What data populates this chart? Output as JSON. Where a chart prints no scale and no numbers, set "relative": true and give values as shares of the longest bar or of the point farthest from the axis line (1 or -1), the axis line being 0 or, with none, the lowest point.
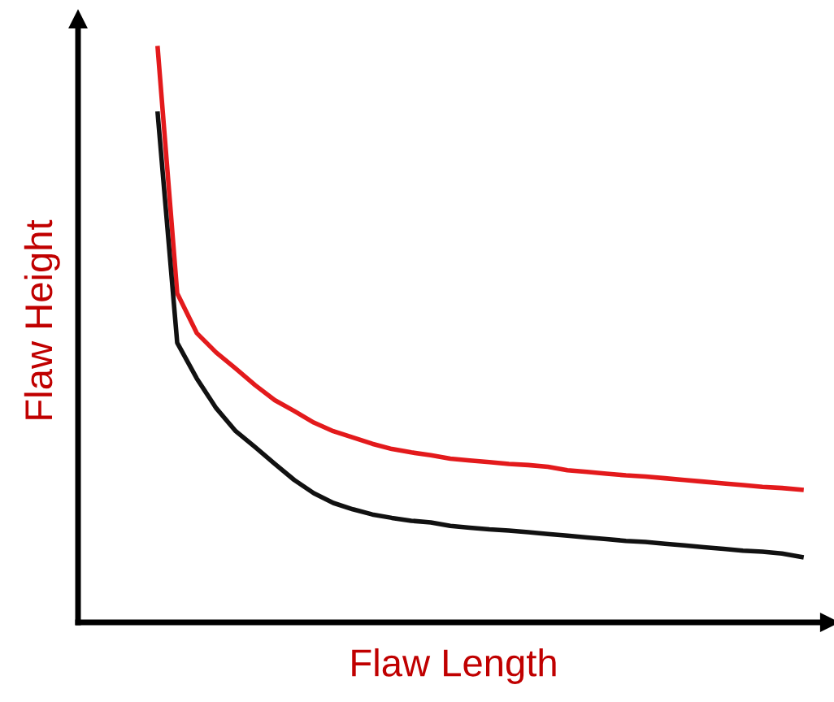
{
  "chart_data": {
    "type": "line",
    "relative": true,
    "xlabel": "Flaw Length",
    "ylabel": "Flaw Height",
    "categories": [
      null,
      null,
      null,
      null,
      null,
      null,
      null,
      null,
      null,
      null,
      null,
      null,
      null,
      null,
      null,
      null,
      null,
      null,
      null,
      null,
      null,
      null,
      null,
      null,
      null,
      null,
      null,
      null,
      null,
      null,
      null,
      null,
      null,
      null
    ],
    "series": [
      {
        "color": "#e31a1c",
        "values": [
          1,
          0.573,
          0.504,
          0.47,
          0.442,
          0.413,
          0.387,
          0.368,
          0.348,
          0.333,
          0.322,
          0.311,
          0.302,
          0.296,
          0.291,
          0.285,
          0.282,
          0.279,
          0.276,
          0.274,
          0.271,
          0.265,
          0.262,
          0.259,
          0.256,
          0.254,
          0.251,
          0.248,
          0.245,
          0.242,
          0.239,
          0.236,
          0.234,
          0.231
        ]
      },
      {
        "color": "#111111",
        "values": [
          0.886,
          0.487,
          0.425,
          0.373,
          0.333,
          0.305,
          0.276,
          0.248,
          0.225,
          0.208,
          0.197,
          0.188,
          0.182,
          0.177,
          0.174,
          0.168,
          0.165,
          0.162,
          0.16,
          0.157,
          0.154,
          0.151,
          0.148,
          0.145,
          0.142,
          0.14,
          0.137,
          0.134,
          0.131,
          0.128,
          0.125,
          0.123,
          0.12,
          0.114
        ]
      }
    ],
    "grid": false,
    "legend": false,
    "marker": "none",
    "line_style": "solid"
  }
}
